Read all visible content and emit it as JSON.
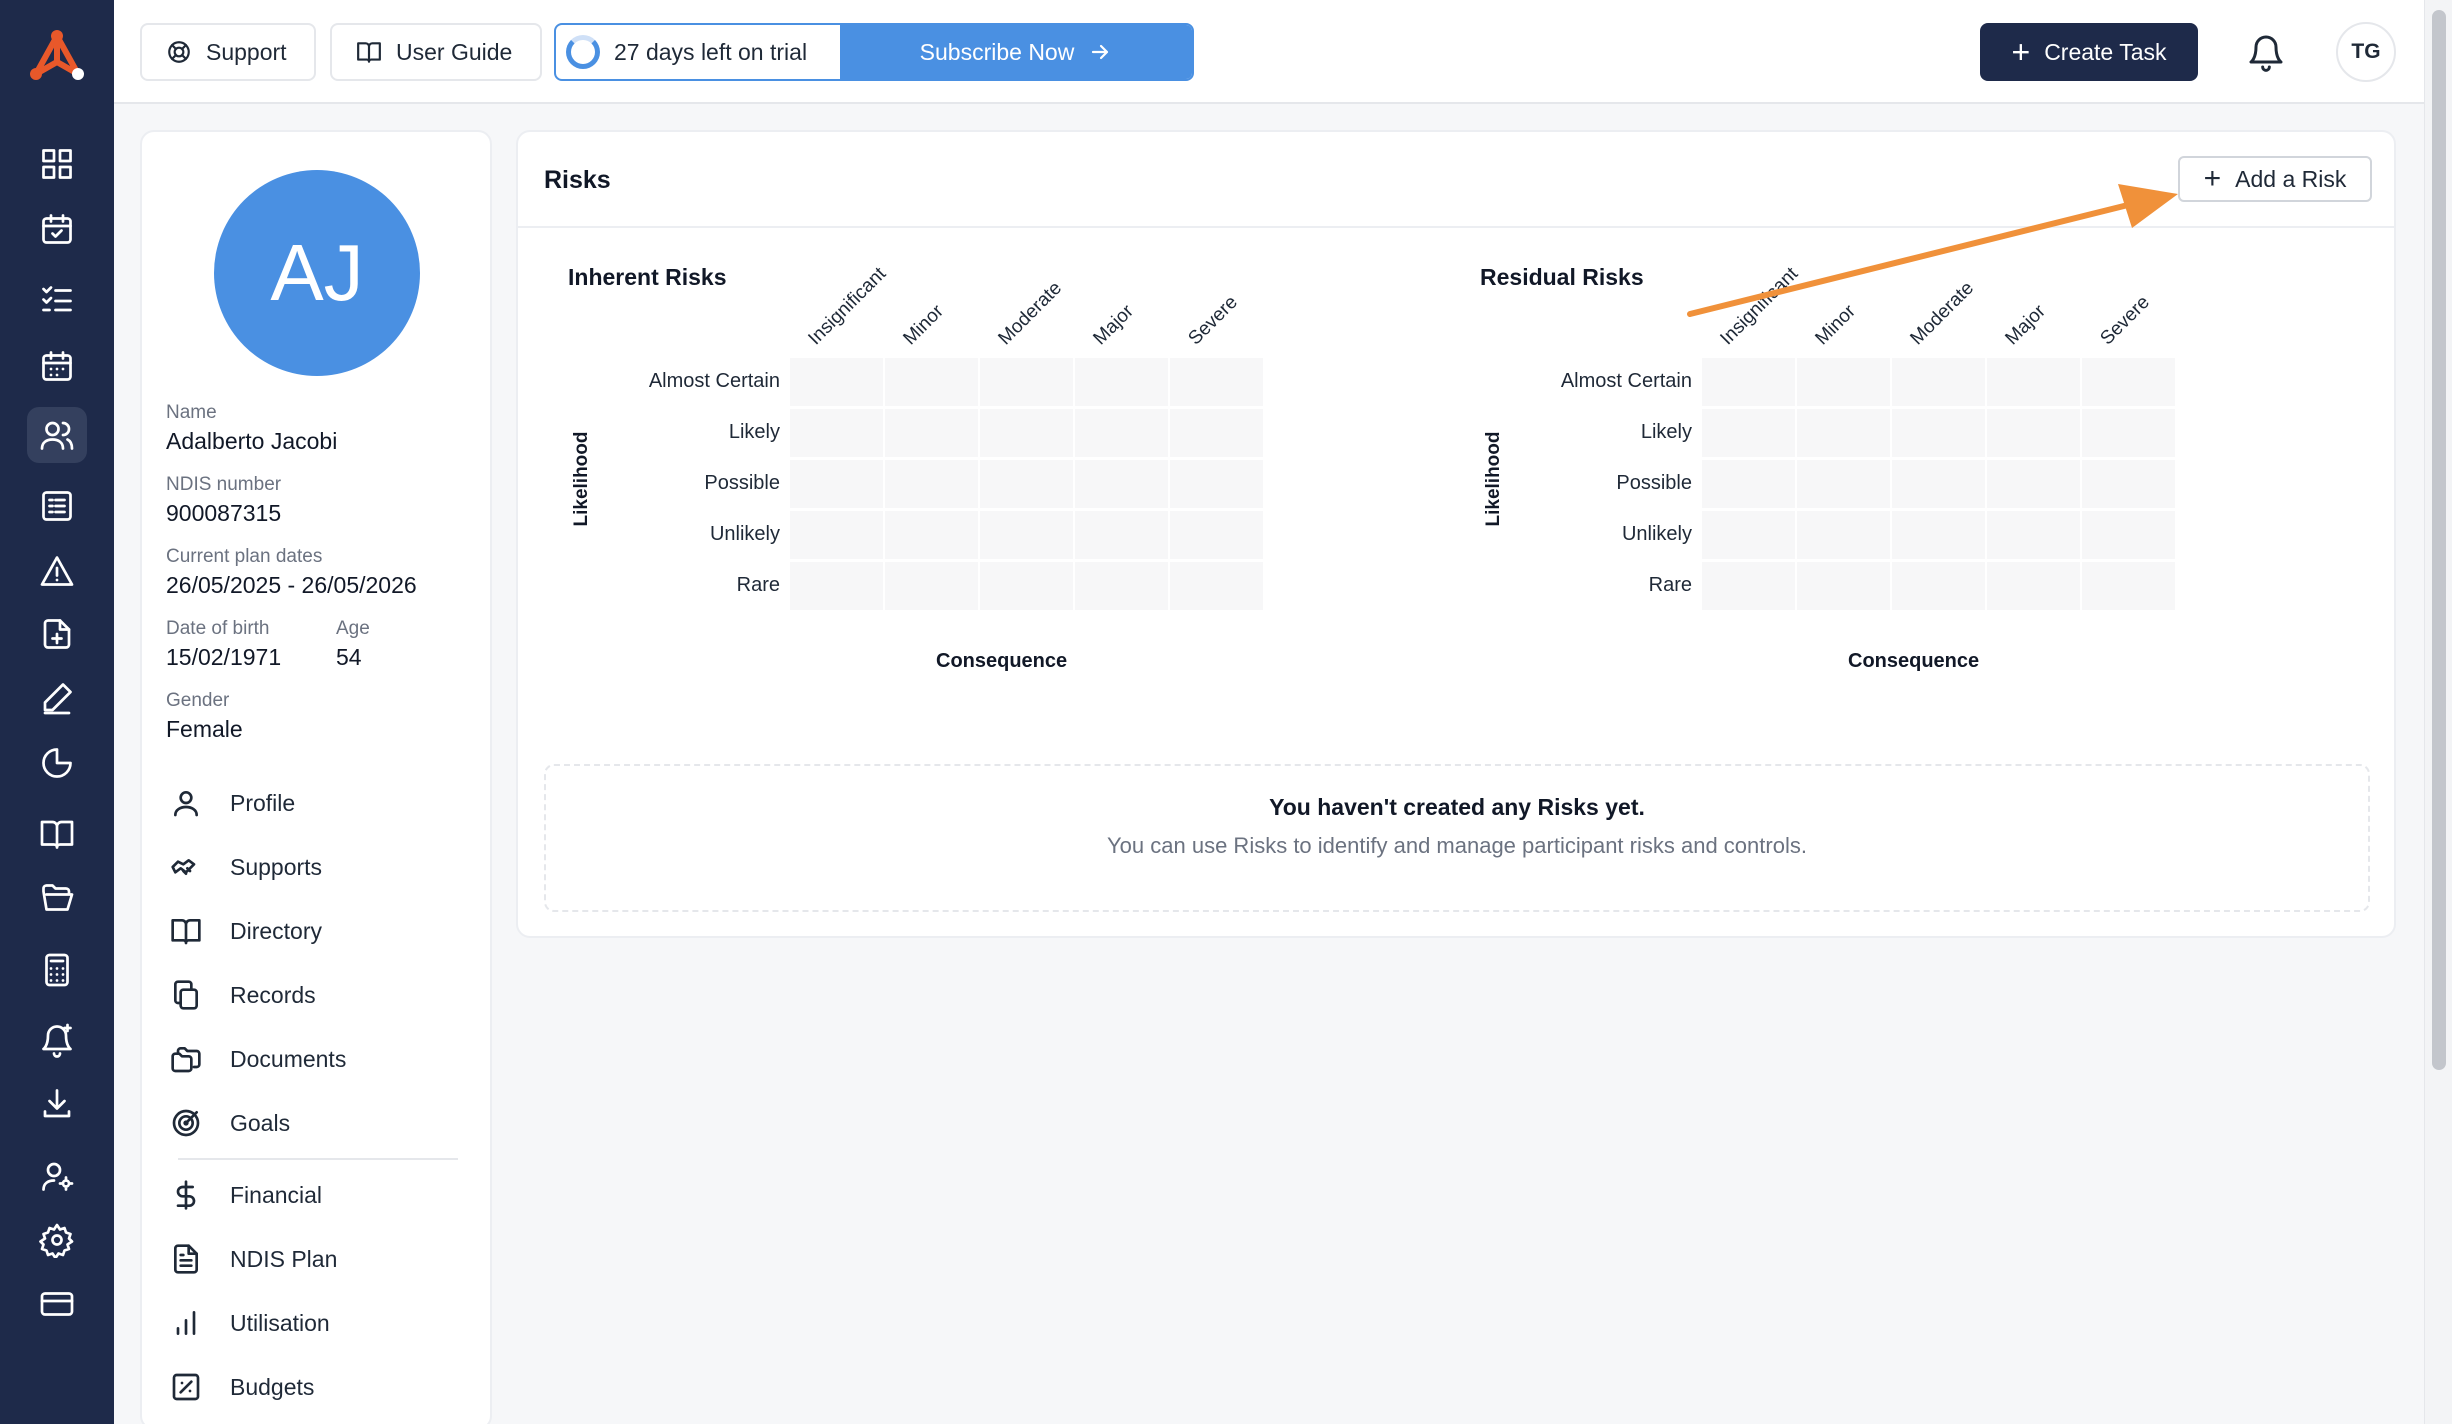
{
  "topbar": {
    "support_label": "Support",
    "guide_label": "User Guide",
    "trial_text": "27 days left on trial",
    "subscribe_label": "Subscribe Now",
    "create_task_label": "Create Task",
    "avatar_initials": "TG"
  },
  "rail_icons": [
    "dashboard-icon",
    "calendar-check-icon",
    "list-check-icon",
    "calendar-icon",
    "users-icon",
    "form-icon",
    "alert-triangle-icon",
    "file-plus-icon",
    "pen-icon",
    "pie-chart-icon",
    "book-icon",
    "folder-open-icon",
    "calculator-icon",
    "bell-plus-icon",
    "download-icon",
    "user-cog-icon",
    "settings-icon",
    "credit-card-icon"
  ],
  "participant": {
    "initials": "AJ",
    "name_label": "Name",
    "name": "Adalberto Jacobi",
    "ndis_label": "NDIS number",
    "ndis": "900087315",
    "plan_label": "Current plan dates",
    "plan_dates": "26/05/2025 - 26/05/2026",
    "dob_label": "Date of birth",
    "dob": "15/02/1971",
    "age_label": "Age",
    "age": "54",
    "gender_label": "Gender",
    "gender": "Female",
    "nav": [
      "Profile",
      "Supports",
      "Directory",
      "Records",
      "Documents",
      "Goals",
      "Financial",
      "NDIS Plan",
      "Utilisation",
      "Budgets"
    ]
  },
  "risks": {
    "title": "Risks",
    "add_label": "Add a Risk",
    "inherent_title": "Inherent Risks",
    "residual_title": "Residual Risks",
    "columns": [
      "Insignificant",
      "Minor",
      "Moderate",
      "Major",
      "Severe"
    ],
    "rows": [
      "Almost Certain",
      "Likely",
      "Possible",
      "Unlikely",
      "Rare"
    ],
    "y_label": "Likelihood",
    "x_label": "Consequence",
    "empty_heading": "You haven't created any Risks yet.",
    "empty_text": "You can use Risks to identify and manage participant risks and controls."
  },
  "colors": {
    "rail": "#1e2a4a",
    "accent": "#4a90e2",
    "annotation_arrow": "#f0913a"
  }
}
